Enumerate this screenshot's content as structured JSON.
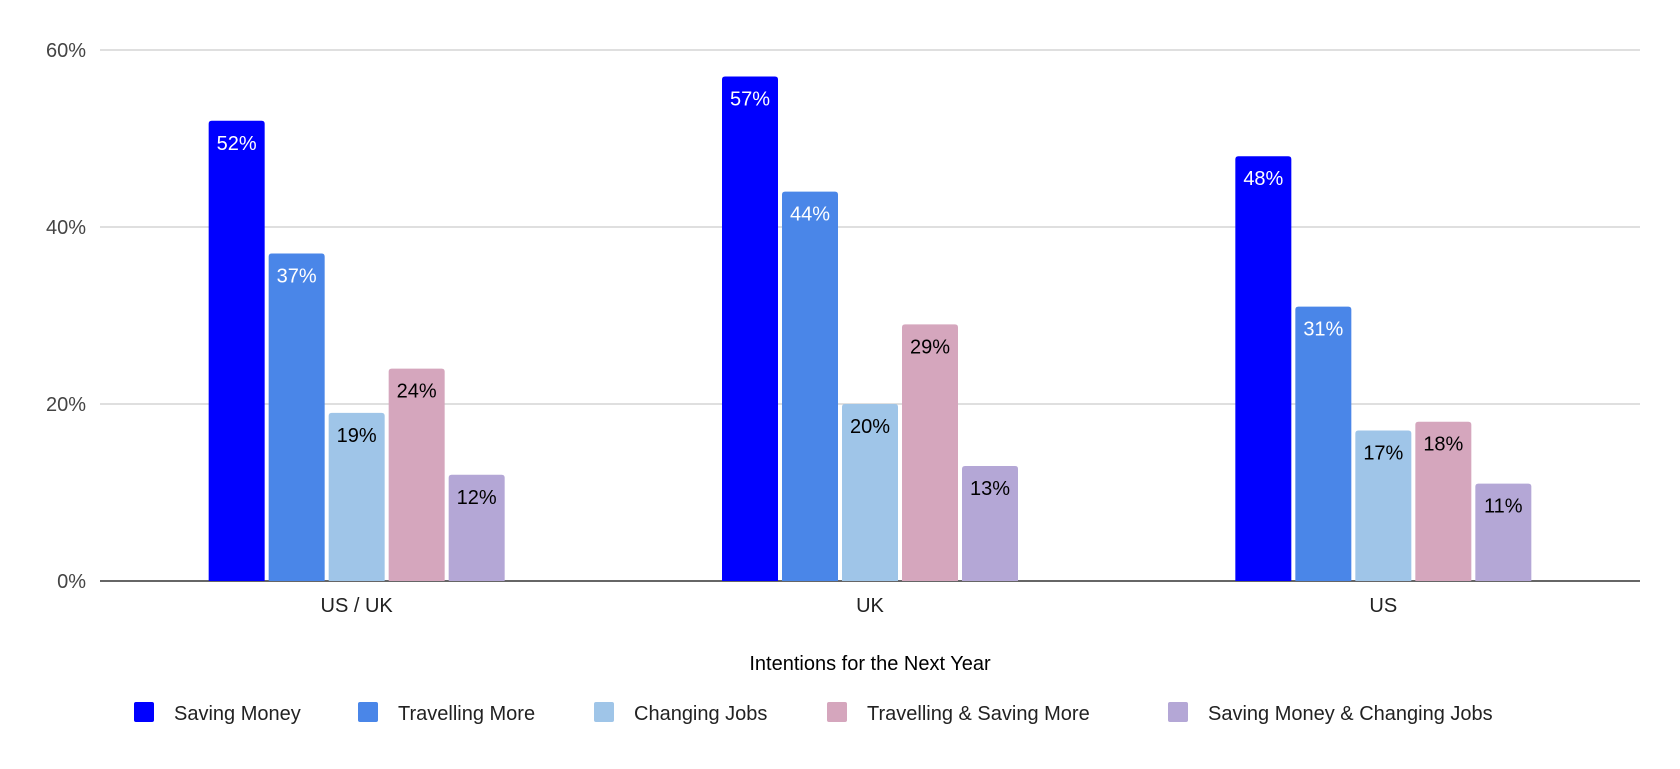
{
  "chart_data": {
    "type": "bar",
    "title": "",
    "xlabel": "Intentions for the Next Year",
    "ylabel": "",
    "ylim": [
      0,
      60
    ],
    "yticks": [
      "0%",
      "20%",
      "40%",
      "60%"
    ],
    "ytick_values": [
      0,
      20,
      40,
      60
    ],
    "grid": true,
    "legend_position": "bottom",
    "categories": [
      "US / UK",
      "UK",
      "US"
    ],
    "series": [
      {
        "name": "Saving Money",
        "color": "#0000ff",
        "label_color": "#ffffff",
        "values": [
          52,
          57,
          48
        ],
        "labels": [
          "52%",
          "57%",
          "48%"
        ]
      },
      {
        "name": "Travelling More",
        "color": "#4a86e8",
        "label_color": "#ffffff",
        "values": [
          37,
          44,
          31
        ],
        "labels": [
          "37%",
          "44%",
          "31%"
        ]
      },
      {
        "name": "Changing Jobs",
        "color": "#9fc5e8",
        "label_color": "#000000",
        "values": [
          19,
          20,
          17
        ],
        "labels": [
          "19%",
          "20%",
          "17%"
        ]
      },
      {
        "name": "Travelling & Saving More",
        "color": "#d5a6bd",
        "label_color": "#000000",
        "values": [
          24,
          29,
          18
        ],
        "labels": [
          "24%",
          "29%",
          "18%"
        ]
      },
      {
        "name": "Saving Money & Changing Jobs",
        "color": "#b4a7d6",
        "label_color": "#000000",
        "values": [
          12,
          13,
          11
        ],
        "labels": [
          "12%",
          "13%",
          "11%"
        ]
      }
    ]
  }
}
